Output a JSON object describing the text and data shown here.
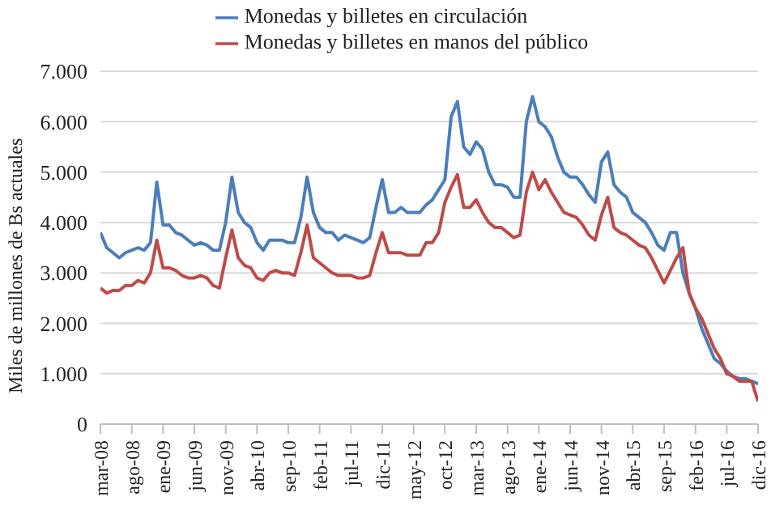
{
  "chart_data": {
    "type": "line",
    "ylabel": "Miles de millones de Bs actuales",
    "categories": [
      "mar-08",
      null,
      null,
      null,
      null,
      "ago-08",
      null,
      null,
      null,
      null,
      "ene-09",
      null,
      null,
      null,
      null,
      "jun-09",
      null,
      null,
      null,
      null,
      "nov-09",
      null,
      null,
      null,
      null,
      "abr-10",
      null,
      null,
      null,
      null,
      "sep-10",
      null,
      null,
      null,
      null,
      "feb-11",
      null,
      null,
      null,
      null,
      "jul-11",
      null,
      null,
      null,
      null,
      "dic-11",
      null,
      null,
      null,
      null,
      "may-12",
      null,
      null,
      null,
      null,
      "oct-12",
      null,
      null,
      null,
      null,
      "mar-13",
      null,
      null,
      null,
      null,
      "ago-13",
      null,
      null,
      null,
      null,
      "ene-14",
      null,
      null,
      null,
      null,
      "jun-14",
      null,
      null,
      null,
      null,
      "nov-14",
      null,
      null,
      null,
      null,
      "abr-15",
      null,
      null,
      null,
      null,
      "sep-15",
      null,
      null,
      null,
      null,
      "feb-16",
      null,
      null,
      null,
      null,
      "jul-16",
      null,
      null,
      null,
      null,
      "dic-16"
    ],
    "series": [
      {
        "name": "Monedas y billetes en circulación",
        "color": "#4a7ebb",
        "values": [
          3800,
          3500,
          3400,
          3300,
          3400,
          3450,
          3500,
          3450,
          3600,
          4800,
          3950,
          3950,
          3800,
          3750,
          3650,
          3550,
          3600,
          3550,
          3450,
          3450,
          4000,
          4900,
          4200,
          4000,
          3900,
          3600,
          3450,
          3650,
          3650,
          3650,
          3600,
          3600,
          4100,
          4900,
          4200,
          3900,
          3800,
          3800,
          3650,
          3750,
          3700,
          3650,
          3600,
          3700,
          4300,
          4850,
          4200,
          4200,
          4300,
          4200,
          4200,
          4200,
          4350,
          4450,
          4650,
          4850,
          6100,
          6400,
          5500,
          5350,
          5600,
          5450,
          5000,
          4750,
          4750,
          4700,
          4500,
          4500,
          6000,
          6500,
          6000,
          5900,
          5700,
          5300,
          5000,
          4900,
          4900,
          4750,
          4550,
          4400,
          5200,
          5400,
          4750,
          4600,
          4500,
          4200,
          4100,
          4000,
          3800,
          3550,
          3450,
          3800,
          3800,
          3000,
          2600,
          2300,
          1900,
          1600,
          1300,
          1200,
          1050,
          950,
          900,
          900,
          850,
          800
        ]
      },
      {
        "name": "Monedas y billetes en manos del público",
        "color": "#be4b48",
        "values": [
          2700,
          2600,
          2650,
          2650,
          2750,
          2750,
          2850,
          2800,
          3000,
          3650,
          3100,
          3100,
          3050,
          2950,
          2900,
          2900,
          2950,
          2900,
          2750,
          2700,
          3300,
          3850,
          3300,
          3150,
          3100,
          2900,
          2850,
          3000,
          3050,
          3000,
          3000,
          2950,
          3400,
          3950,
          3300,
          3200,
          3100,
          3000,
          2950,
          2950,
          2950,
          2900,
          2900,
          2950,
          3400,
          3800,
          3400,
          3400,
          3400,
          3350,
          3350,
          3350,
          3600,
          3600,
          3800,
          4400,
          4700,
          4950,
          4300,
          4300,
          4450,
          4200,
          4000,
          3900,
          3900,
          3800,
          3700,
          3750,
          4600,
          5000,
          4650,
          4850,
          4600,
          4400,
          4200,
          4150,
          4100,
          3950,
          3750,
          3650,
          4150,
          4500,
          3900,
          3800,
          3750,
          3650,
          3550,
          3500,
          3300,
          3050,
          2800,
          3050,
          3300,
          3500,
          2600,
          2300,
          2100,
          1800,
          1500,
          1300,
          1000,
          950,
          850,
          850,
          850,
          450
        ]
      }
    ],
    "ylim": [
      0,
      7000
    ],
    "yticks": [
      0,
      {
        "value": 1000,
        "label": "1.000"
      },
      {
        "value": 2000,
        "label": "2.000"
      },
      {
        "value": 3000,
        "label": "3.000"
      },
      {
        "value": 4000,
        "label": "4.000"
      },
      {
        "value": 5000,
        "label": "5.000"
      },
      {
        "value": 6000,
        "label": "6.000"
      },
      {
        "value": 7000,
        "label": "7.000"
      }
    ],
    "grid": "y",
    "legend": "top",
    "marker": "none",
    "line_style": "solid"
  }
}
